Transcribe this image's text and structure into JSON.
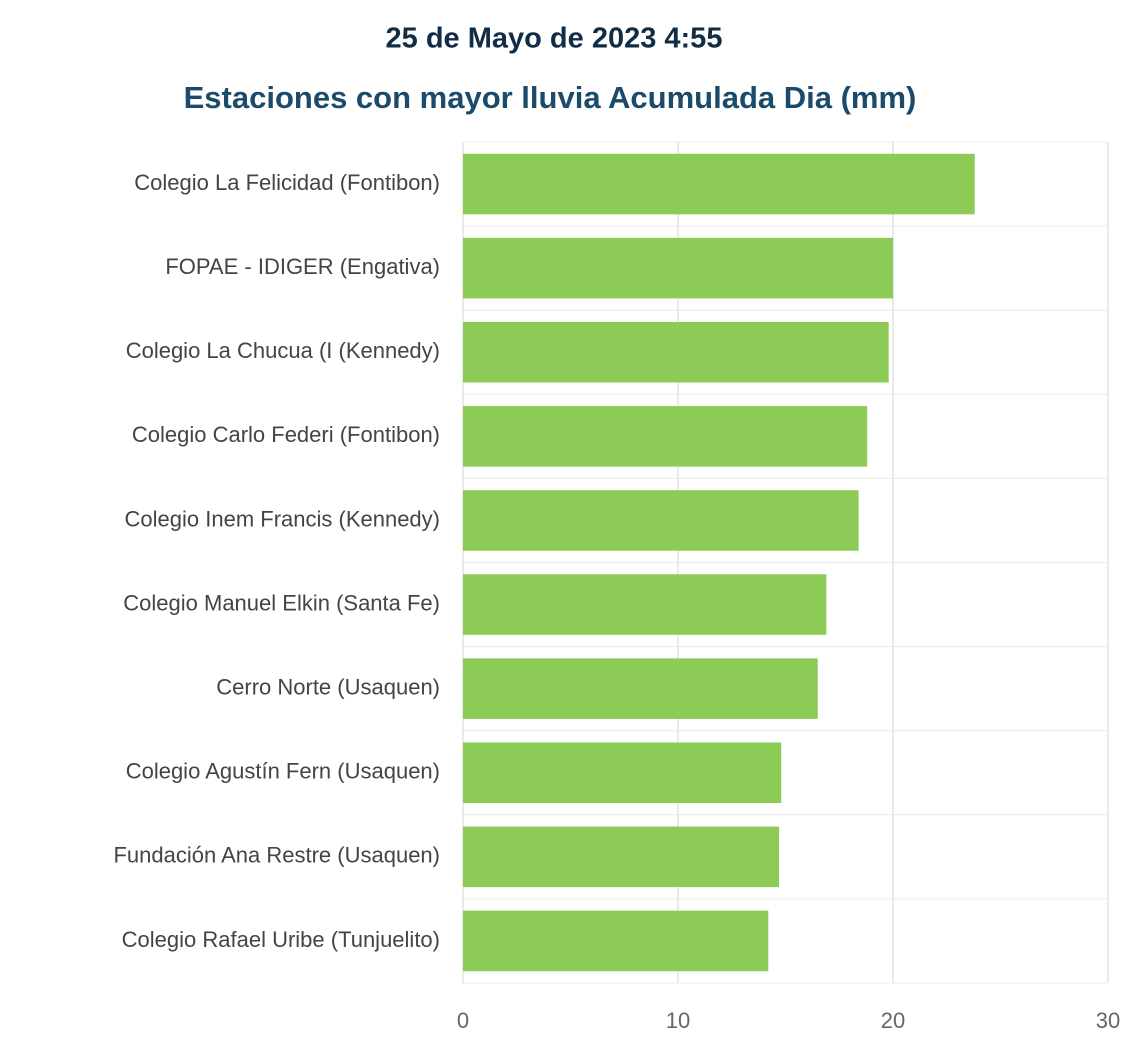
{
  "chart_data": {
    "type": "bar",
    "orientation": "horizontal",
    "title": "25 de Mayo de 2023 4:55",
    "subtitle": "Estaciones con mayor lluvia Acumulada Dia (mm)",
    "categories": [
      "Colegio La Felicidad (Fontibon)",
      "FOPAE - IDIGER (Engativa)",
      "Colegio La Chucua (I (Kennedy)",
      "Colegio Carlo Federi (Fontibon)",
      "Colegio Inem Francis (Kennedy)",
      "Colegio Manuel Elkin (Santa Fe)",
      "Cerro Norte (Usaquen)",
      "Colegio Agustín Fern (Usaquen)",
      "Fundación Ana Restre (Usaquen)",
      "Colegio Rafael Uribe (Tunjuelito)"
    ],
    "values": [
      23.8,
      20.0,
      19.8,
      18.8,
      18.4,
      16.9,
      16.5,
      14.8,
      14.7,
      14.2
    ],
    "color": "#8dcb57",
    "xlim": [
      0,
      30
    ],
    "xticks": [
      0,
      10,
      20,
      30
    ],
    "grid": true
  }
}
